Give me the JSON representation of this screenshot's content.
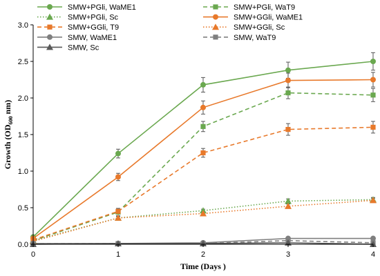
{
  "chart_data": {
    "type": "line",
    "xlabel": "Time (Days )",
    "ylabel_main": "Growth  (OD",
    "ylabel_sub": "600",
    "ylabel_end": " nm)",
    "x": [
      0,
      1,
      2,
      3,
      4
    ],
    "xlim": [
      0,
      4
    ],
    "ylim": [
      0,
      3.0
    ],
    "x_ticks": [
      "0",
      "1",
      "2",
      "3",
      "4"
    ],
    "y_ticks": [
      "0.0",
      "0.5",
      "1.0",
      "1.5",
      "2.0",
      "2.5",
      "3.0"
    ],
    "grid": false,
    "legend_position": "top",
    "series": [
      {
        "name": "SMW+PGli, WaME1",
        "color": "#6aa84f",
        "marker": "circle",
        "dash": "solid",
        "values": [
          0.1,
          1.24,
          2.18,
          2.38,
          2.5
        ],
        "errors": [
          0.02,
          0.06,
          0.1,
          0.11,
          0.12
        ]
      },
      {
        "name": "SMW+PGli, WaT9",
        "color": "#6aa84f",
        "marker": "square",
        "dash": "dashed",
        "values": [
          0.05,
          0.44,
          1.61,
          2.07,
          2.04
        ],
        "errors": [
          0.02,
          0.05,
          0.07,
          0.08,
          0.09
        ]
      },
      {
        "name": "SMW+PGli, Sc",
        "color": "#6aa84f",
        "marker": "triangle",
        "dash": "dotted",
        "values": [
          0.05,
          0.36,
          0.46,
          0.59,
          0.61
        ],
        "errors": [
          0.01,
          0.02,
          0.02,
          0.03,
          0.03
        ]
      },
      {
        "name": "SMW+GGli, WaME1",
        "color": "#e8792b",
        "marker": "circle",
        "dash": "solid",
        "values": [
          0.08,
          0.92,
          1.87,
          2.24,
          2.25
        ],
        "errors": [
          0.02,
          0.05,
          0.09,
          0.1,
          0.1
        ]
      },
      {
        "name": "SMW+GGli, T9",
        "color": "#e8792b",
        "marker": "square",
        "dash": "dashed",
        "values": [
          0.06,
          0.45,
          1.25,
          1.57,
          1.6
        ],
        "errors": [
          0.02,
          0.04,
          0.06,
          0.08,
          0.08
        ]
      },
      {
        "name": "SMW+GGli, Sc",
        "color": "#e8792b",
        "marker": "triangle",
        "dash": "dotted",
        "values": [
          0.04,
          0.36,
          0.42,
          0.52,
          0.6
        ],
        "errors": [
          0.01,
          0.02,
          0.02,
          0.03,
          0.03
        ]
      },
      {
        "name": "SMW, WaME1",
        "color": "#7f7f7f",
        "marker": "circle",
        "dash": "solid",
        "values": [
          0.01,
          0.01,
          0.02,
          0.08,
          0.08
        ],
        "errors": [
          0.0,
          0.0,
          0.01,
          0.02,
          0.02
        ]
      },
      {
        "name": "SMW, WaT9",
        "color": "#7f7f7f",
        "marker": "square",
        "dash": "dashed",
        "values": [
          0.01,
          0.01,
          0.01,
          0.05,
          0.02
        ],
        "errors": [
          0.0,
          0.0,
          0.0,
          0.01,
          0.01
        ]
      },
      {
        "name": "SMW, Sc",
        "color": "#595959",
        "marker": "triangle",
        "dash": "solid",
        "values": [
          0.0,
          0.01,
          0.01,
          0.02,
          0.0
        ],
        "errors": [
          0.0,
          0.0,
          0.0,
          0.01,
          0.0
        ]
      }
    ]
  }
}
